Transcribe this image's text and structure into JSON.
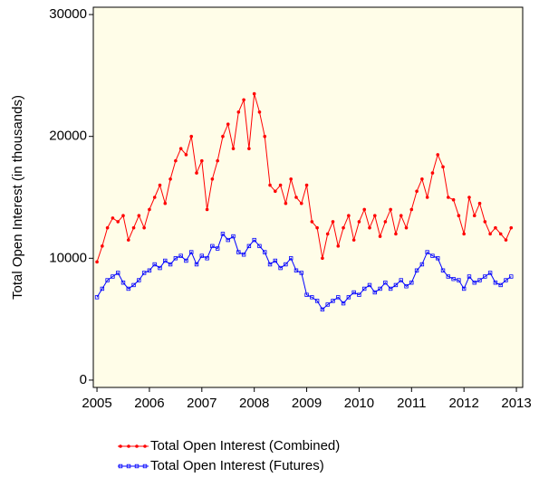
{
  "chart_data": {
    "type": "line",
    "ylabel": "Total Open Interest (in thousands)",
    "x": [
      2005.0,
      2005.1,
      2005.2,
      2005.3,
      2005.4,
      2005.5,
      2005.6,
      2005.7,
      2005.8,
      2005.9,
      2006.0,
      2006.1,
      2006.2,
      2006.3,
      2006.4,
      2006.5,
      2006.6,
      2006.7,
      2006.8,
      2006.9,
      2007.0,
      2007.1,
      2007.2,
      2007.3,
      2007.4,
      2007.5,
      2007.6,
      2007.7,
      2007.8,
      2007.9,
      2008.0,
      2008.1,
      2008.2,
      2008.3,
      2008.4,
      2008.5,
      2008.6,
      2008.7,
      2008.8,
      2008.9,
      2009.0,
      2009.1,
      2009.2,
      2009.3,
      2009.4,
      2009.5,
      2009.6,
      2009.7,
      2009.8,
      2009.9,
      2010.0,
      2010.1,
      2010.2,
      2010.3,
      2010.4,
      2010.5,
      2010.6,
      2010.7,
      2010.8,
      2010.9,
      2011.0,
      2011.1,
      2011.2,
      2011.3,
      2011.4,
      2011.5,
      2011.6,
      2011.7,
      2011.8,
      2011.9,
      2012.0,
      2012.1,
      2012.2,
      2012.3,
      2012.4,
      2012.5,
      2012.6,
      2012.7,
      2012.8,
      2012.9
    ],
    "series": [
      {
        "name": "Total Open Interest (Combined)",
        "color": "#ff0000",
        "marker": "circle",
        "values": [
          9700,
          11000,
          12500,
          13300,
          13000,
          13500,
          11500,
          12500,
          13500,
          12500,
          14000,
          15000,
          16000,
          14500,
          16500,
          18000,
          19000,
          18500,
          20000,
          17000,
          18000,
          14000,
          16500,
          18000,
          20000,
          21000,
          19000,
          22000,
          23000,
          19000,
          23500,
          22000,
          20000,
          16000,
          15500,
          16000,
          14500,
          16500,
          15000,
          14500,
          16000,
          13000,
          12500,
          10000,
          12000,
          13000,
          11000,
          12500,
          13500,
          11500,
          13000,
          14000,
          12500,
          13500,
          11800,
          13000,
          14000,
          12000,
          13500,
          12500,
          14000,
          15500,
          16500,
          15000,
          17000,
          18500,
          17500,
          15000,
          14800,
          13500,
          12000,
          15000,
          13500,
          14500,
          13000,
          12000,
          12500,
          12000,
          11500,
          12500
        ]
      },
      {
        "name": "Total Open Interest (Futures)",
        "color": "#0000ff",
        "marker": "square",
        "values": [
          6800,
          7500,
          8200,
          8500,
          8800,
          8000,
          7500,
          7800,
          8200,
          8800,
          9000,
          9500,
          9200,
          9800,
          9500,
          10000,
          10200,
          9800,
          10500,
          9500,
          10200,
          10000,
          11000,
          10800,
          12000,
          11500,
          11800,
          10500,
          10300,
          11000,
          11500,
          11000,
          10500,
          9500,
          9800,
          9200,
          9500,
          10000,
          9000,
          8800,
          7000,
          6800,
          6500,
          5800,
          6200,
          6500,
          6800,
          6300,
          6800,
          7200,
          7000,
          7500,
          7800,
          7200,
          7500,
          8000,
          7500,
          7800,
          8200,
          7700,
          8000,
          9000,
          9500,
          10500,
          10200,
          10000,
          9000,
          8500,
          8300,
          8200,
          7500,
          8500,
          8000,
          8200,
          8500,
          8800,
          8000,
          7800,
          8200,
          8500
        ]
      }
    ],
    "xlim": [
      2004.93,
      2013.12
    ],
    "xticks": [
      2005,
      2006,
      2007,
      2008,
      2009,
      2010,
      2011,
      2012,
      2013
    ],
    "ylim": [
      -600,
      30600
    ],
    "yticks": [
      0,
      10000,
      20000,
      30000
    ],
    "background": "#fffde8",
    "grid": false,
    "legend": "bottom"
  }
}
